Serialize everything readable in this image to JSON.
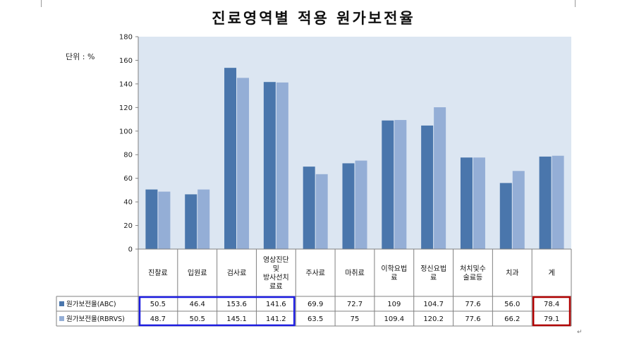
{
  "colors": {
    "series1": "#4A76AC",
    "series2": "#94AED6",
    "plot_bg": "#DCE6F2",
    "highlight_left": "#1C1CE0",
    "highlight_right": "#B00000"
  },
  "unit_label": "단위 : %",
  "chart_data": {
    "type": "bar",
    "title": "진료영역별 적용 원가보전율",
    "ylim": [
      0,
      180
    ],
    "yticks": [
      0,
      20,
      40,
      60,
      80,
      100,
      120,
      140,
      160,
      180
    ],
    "grid": false,
    "legend": "bottom-left",
    "categories": [
      [
        "진찰료"
      ],
      [
        "입원료"
      ],
      [
        "검사료"
      ],
      [
        "영상진단",
        "및",
        "방사선치",
        "료료"
      ],
      [
        "주사료"
      ],
      [
        "마취료"
      ],
      [
        "이학요법",
        "료"
      ],
      [
        "정신요법",
        "료"
      ],
      [
        "처치및수",
        "술료등"
      ],
      [
        "치과"
      ],
      [
        "계"
      ]
    ],
    "series": [
      {
        "name": "원가보전율(ABC)",
        "values": [
          50.5,
          46.4,
          153.6,
          141.6,
          69.9,
          72.7,
          109,
          104.7,
          77.6,
          56.0,
          78.4
        ],
        "labels": [
          "50.5",
          "46.4",
          "153.6",
          "141.6",
          "69.9",
          "72.7",
          "109",
          "104.7",
          "77.6",
          "56.0",
          "78.4"
        ]
      },
      {
        "name": "원가보전율(RBRVS)",
        "values": [
          48.7,
          50.5,
          145.1,
          141.2,
          63.5,
          75,
          109.4,
          120.2,
          77.6,
          66.2,
          79.1
        ],
        "labels": [
          "48.7",
          "50.5",
          "145.1",
          "141.2",
          "63.5",
          "75",
          "109.4",
          "120.2",
          "77.6",
          "66.2",
          "79.1"
        ]
      }
    ]
  }
}
